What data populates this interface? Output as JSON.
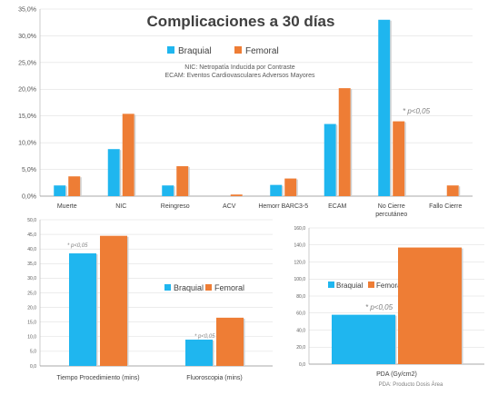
{
  "colors": {
    "braquial": "#1fb6ef",
    "femoral": "#ee7d35",
    "axis": "#555555",
    "grid": "#d9d9d9",
    "annotation": "#7f7f7f"
  },
  "chart_data": [
    {
      "type": "bar",
      "title": "Complicaciones a 30 días",
      "legend": [
        "Braquial",
        "Femoral"
      ],
      "legend_position": "top",
      "notes": [
        "NIC: Netropatía Inducida por Contraste",
        "ECAM: Eventos Cardiovasculares Adversos Mayores"
      ],
      "annotation": "* p<0,05",
      "categories": [
        "Muerte",
        "NIC",
        "Reingreso",
        "ACV",
        "Hemorr BARC3-5",
        "ECAM",
        "No Cierre percutáneo",
        "Fallo Cierre"
      ],
      "series": [
        {
          "name": "Braquial",
          "values": [
            2.0,
            8.8,
            2.0,
            0.0,
            2.1,
            13.5,
            33.0,
            0.0
          ]
        },
        {
          "name": "Femoral",
          "values": [
            3.7,
            15.4,
            5.6,
            0.3,
            3.3,
            20.2,
            14.0,
            2.0
          ]
        }
      ],
      "ylim": [
        0,
        35
      ],
      "yticks": [
        "0,0%",
        "5,0%",
        "10,0%",
        "15,0%",
        "20,0%",
        "25,0%",
        "30,0%",
        "35,0%"
      ]
    },
    {
      "type": "bar",
      "legend": [
        "Braquial",
        "Femoral"
      ],
      "legend_position": "right",
      "annotations": [
        "* p<0,05",
        "* p<0,05"
      ],
      "categories": [
        "Tiempo Procedimiento (mins)",
        "Fluoroscopia (mins)"
      ],
      "series": [
        {
          "name": "Braquial",
          "values": [
            38.5,
            9.0
          ]
        },
        {
          "name": "Femoral",
          "values": [
            44.5,
            16.5
          ]
        }
      ],
      "ylim": [
        0,
        50
      ],
      "yticks": [
        "0,0",
        "5,0",
        "10,0",
        "15,0",
        "20,0",
        "25,0",
        "30,0",
        "35,0",
        "40,0",
        "45,0",
        "50,0"
      ]
    },
    {
      "type": "bar",
      "legend": [
        "Braquial",
        "Femoral"
      ],
      "legend_position": "top",
      "annotation": "* p<0,05",
      "categories": [
        "PDA (Gy/cm2)"
      ],
      "footnote": "PDA: Producto Dosis Área",
      "series": [
        {
          "name": "Braquial",
          "values": [
            58
          ]
        },
        {
          "name": "Femoral",
          "values": [
            137
          ]
        }
      ],
      "ylim": [
        0,
        160
      ],
      "yticks": [
        "0,0",
        "20,0",
        "40,0",
        "60,0",
        "80,0",
        "100,0",
        "120,0",
        "140,0",
        "160,0"
      ]
    }
  ]
}
